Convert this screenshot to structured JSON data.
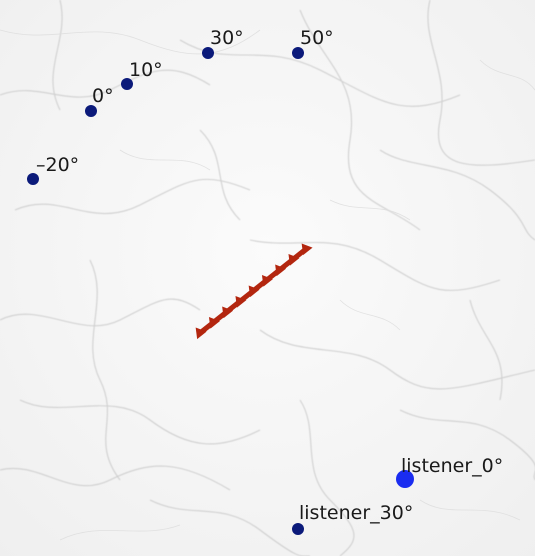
{
  "colors": {
    "background": "#ffffff",
    "marble_vein": "#c8c8c8",
    "source_dot": "#0b1a7a",
    "listener_active": "#1a2cf0",
    "listener_dot": "#0b1a7a",
    "array_element": "#b3260f"
  },
  "sources": [
    {
      "id": "src-minus20",
      "label": "–20°"
    },
    {
      "id": "src-0",
      "label": "0°"
    },
    {
      "id": "src-10",
      "label": "10°"
    },
    {
      "id": "src-30",
      "label": "30°"
    },
    {
      "id": "src-50",
      "label": "50°"
    }
  ],
  "listeners": [
    {
      "id": "listener-0",
      "label": "listener_0°",
      "active": true
    },
    {
      "id": "listener-30",
      "label": "listener_30°",
      "active": false
    }
  ],
  "array": {
    "element_count": 9,
    "element_shape": "triangle-icon"
  }
}
